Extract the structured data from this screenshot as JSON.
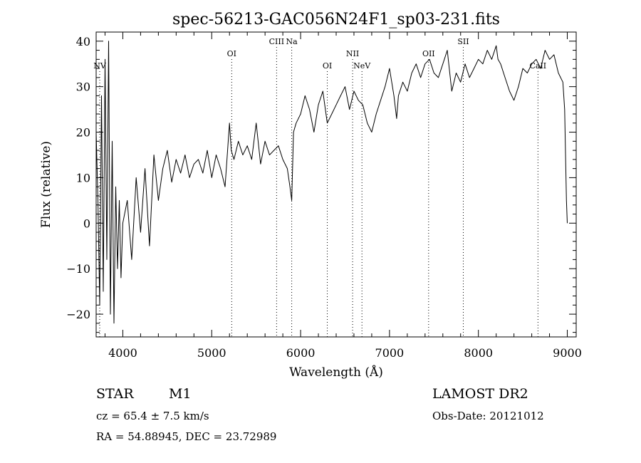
{
  "chart_data": {
    "type": "line",
    "title": "spec-56213-GAC056N24F1_sp03-231.fits",
    "xlabel": "Wavelength (Å)",
    "ylabel": "Flux (relative)",
    "xlim": [
      3700,
      9100
    ],
    "ylim": [
      -25,
      42
    ],
    "xticks": [
      4000,
      5000,
      6000,
      7000,
      8000,
      9000
    ],
    "xtick_labels": [
      "4000",
      "5000",
      "6000",
      "7000",
      "8000",
      "9000"
    ],
    "yticks": [
      -20,
      -10,
      0,
      10,
      20,
      30,
      40
    ],
    "ytick_labels": [
      "−20",
      "−10",
      "0",
      "10",
      "20",
      "30",
      "40"
    ],
    "grid": false,
    "series": [
      {
        "x": [
          3700,
          3720,
          3740,
          3760,
          3780,
          3800,
          3820,
          3840,
          3860,
          3880,
          3900,
          3920,
          3940,
          3960,
          3980,
          4000,
          4050,
          4100,
          4150,
          4200,
          4250,
          4300,
          4350,
          4400,
          4450,
          4500,
          4550,
          4600,
          4650,
          4700,
          4750,
          4800,
          4850,
          4900,
          4950,
          5000,
          5050,
          5100,
          5150,
          5200,
          5220,
          5250,
          5300,
          5350,
          5400,
          5450,
          5500,
          5550,
          5600,
          5650,
          5700,
          5750,
          5800,
          5850,
          5880,
          5900,
          5920,
          5950,
          6000,
          6050,
          6100,
          6150,
          6200,
          6250,
          6300,
          6350,
          6400,
          6450,
          6500,
          6550,
          6600,
          6650,
          6700,
          6750,
          6800,
          6850,
          6900,
          6950,
          7000,
          7050,
          7080,
          7100,
          7150,
          7200,
          7250,
          7300,
          7350,
          7400,
          7450,
          7500,
          7550,
          7600,
          7650,
          7700,
          7750,
          7800,
          7850,
          7900,
          7950,
          8000,
          8050,
          8100,
          8150,
          8200,
          8220,
          8250,
          8300,
          8350,
          8400,
          8450,
          8500,
          8550,
          8600,
          8650,
          8700,
          8750,
          8800,
          8850,
          8900,
          8950,
          8970,
          8990,
          9000
        ],
        "y": [
          20,
          5,
          -18,
          28,
          -15,
          36,
          -8,
          40,
          -20,
          18,
          -22,
          8,
          -10,
          5,
          -12,
          0,
          5,
          -8,
          10,
          -2,
          12,
          -5,
          15,
          5,
          12,
          16,
          9,
          14,
          11,
          15,
          10,
          13,
          14,
          11,
          16,
          10,
          15,
          12,
          8,
          22,
          16,
          14,
          18,
          15,
          17,
          14,
          22,
          13,
          18,
          15,
          16,
          17,
          14,
          12,
          8,
          5,
          20,
          22,
          24,
          28,
          25,
          20,
          26,
          29,
          22,
          24,
          26,
          28,
          30,
          25,
          29,
          27,
          26,
          22,
          20,
          24,
          27,
          30,
          34,
          28,
          23,
          28,
          31,
          29,
          33,
          35,
          32,
          35,
          36,
          33,
          32,
          35,
          38,
          29,
          33,
          31,
          35,
          32,
          34,
          36,
          35,
          38,
          36,
          39,
          36,
          35,
          32,
          29,
          27,
          30,
          34,
          33,
          35,
          36,
          34,
          38,
          36,
          37,
          33,
          31,
          25,
          5,
          0
        ]
      }
    ],
    "line_markers": [
      {
        "name": "NV",
        "x": 3740,
        "label_row": 3
      },
      {
        "name": "OI",
        "x": 5225,
        "label_row": 2
      },
      {
        "name": "CIII",
        "x": 5730,
        "label_row": 1
      },
      {
        "name": "Na",
        "x": 5900,
        "label_row": 1
      },
      {
        "name": "OI",
        "x": 6300,
        "label_row": 3
      },
      {
        "name": "NII",
        "x": 6585,
        "label_row": 2
      },
      {
        "name": "NeV",
        "x": 6690,
        "label_row": 3
      },
      {
        "name": "OII",
        "x": 7440,
        "label_row": 2
      },
      {
        "name": "SII",
        "x": 7830,
        "label_row": 1
      },
      {
        "name": "CaII",
        "x": 8670,
        "label_row": 3
      }
    ]
  },
  "info": {
    "class_label": "STAR",
    "subclass_label": "M1",
    "cz": "cz = 65.4 ± 7.5 km/s",
    "radec": "RA =  54.88945, DEC =  23.72989",
    "survey": "LAMOST DR2",
    "obs_date": "Obs-Date: 20121012"
  }
}
